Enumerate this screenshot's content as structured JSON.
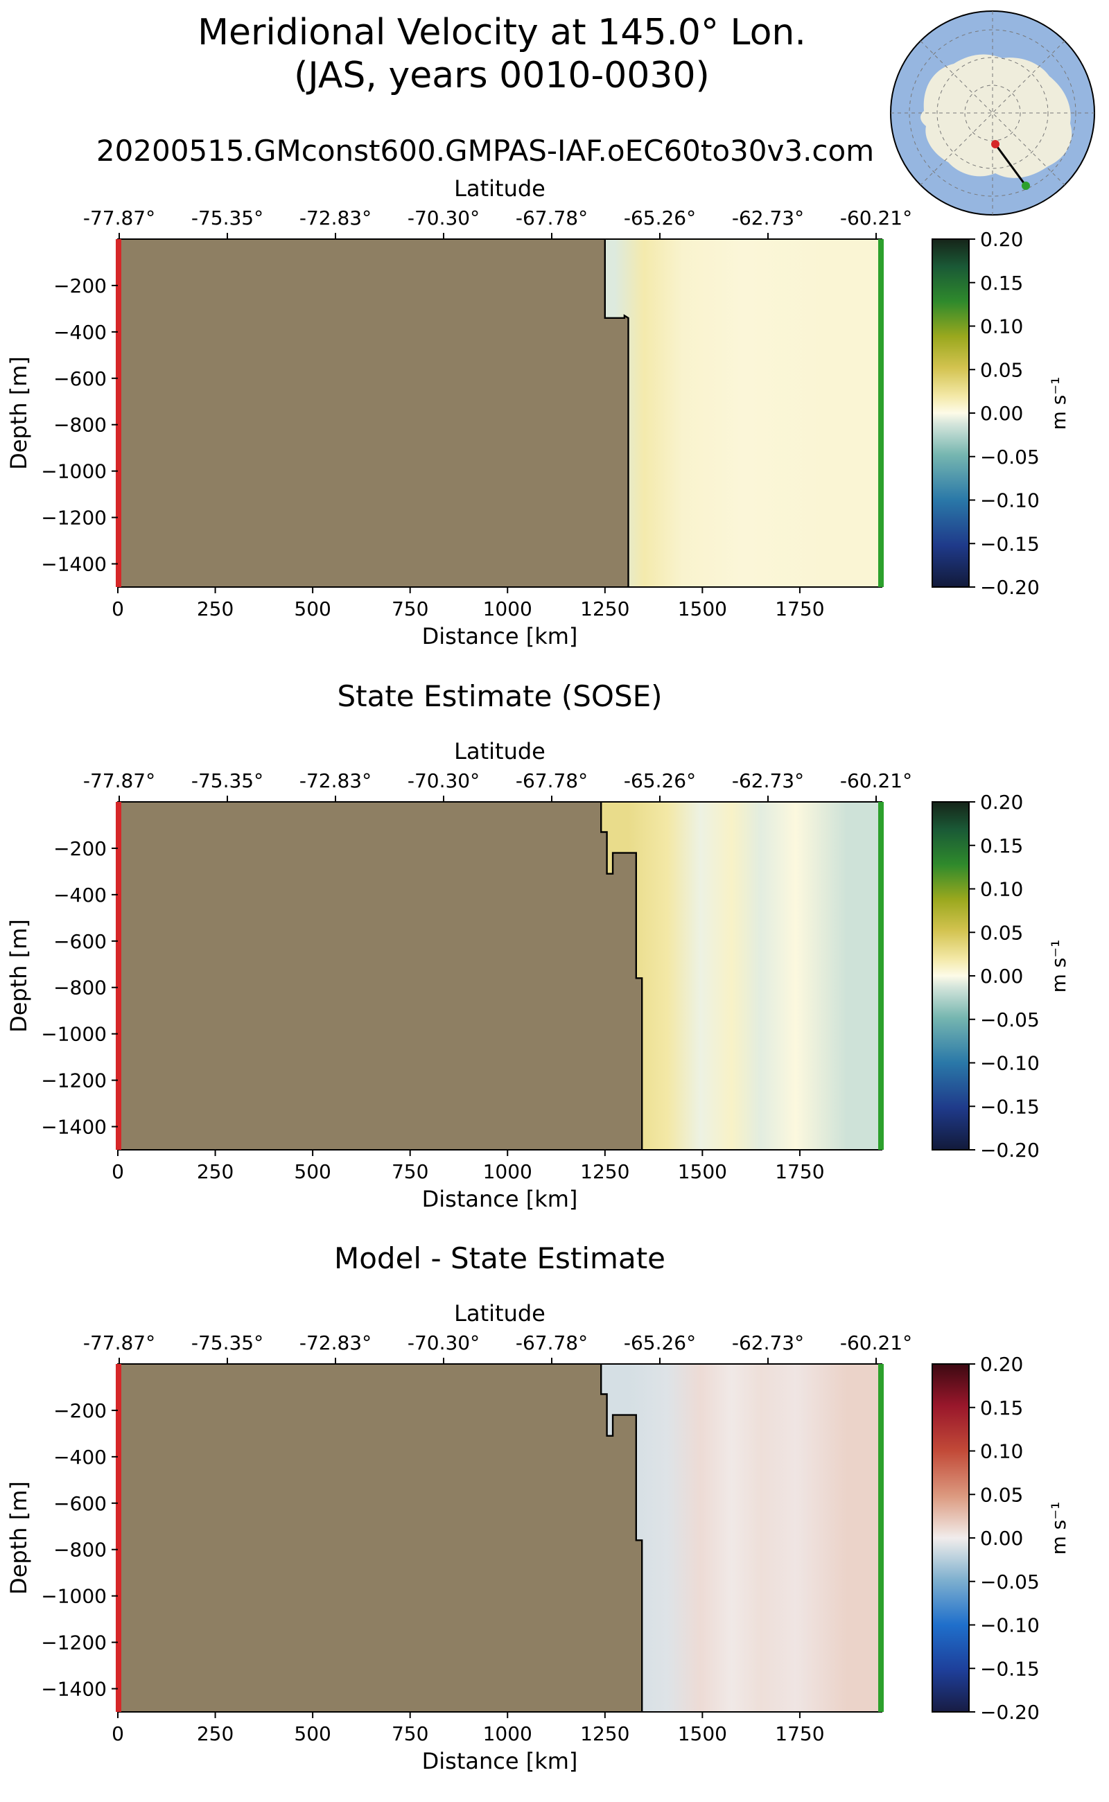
{
  "figure": {
    "title_line1": "Meridional Velocity at 145.0° Lon.",
    "title_line2": "(JAS, years 0010-0030)",
    "run_name": "20200515.GMconst600.GMPAS-IAF.oEC60to30v3.com"
  },
  "inset_map": {
    "projection": "south-polar",
    "land_color": "#efeddc",
    "ocean_color": "#96b6e0",
    "transect_start_color": "#d62728",
    "transect_end_color": "#2ca02c"
  },
  "colors": {
    "land_fill": "#8e7f63",
    "left_edge": "#d62728",
    "right_edge": "#2ca02c"
  },
  "chart_data": [
    {
      "type": "heatmap",
      "title": "",
      "xlabel": "Distance [km]",
      "ylabel": "Depth [m]",
      "top_xlabel": "Latitude",
      "xlim": [
        0,
        1960
      ],
      "ylim": [
        -1500,
        0
      ],
      "x_ticks": [
        0,
        250,
        500,
        750,
        1000,
        1250,
        1500,
        1750
      ],
      "y_ticks": [
        -200,
        -400,
        -600,
        -800,
        -1000,
        -1200,
        -1400
      ],
      "top_ticks": [
        "-77.87°",
        "-75.35°",
        "-72.83°",
        "-70.30°",
        "-67.78°",
        "-65.26°",
        "-62.73°",
        "-60.21°"
      ],
      "colorbar": {
        "label": "m s⁻¹",
        "ticks": [
          "0.20",
          "0.15",
          "0.10",
          "0.05",
          "0.00",
          "−0.05",
          "−0.10",
          "−0.15",
          "−0.20"
        ],
        "colormap": "delta",
        "range": [
          -0.2,
          0.2
        ]
      },
      "bathymetry": [
        [
          1250,
          0
        ],
        [
          1250,
          -340
        ],
        [
          1300,
          -340
        ],
        [
          1300,
          -330
        ],
        [
          1310,
          -340
        ],
        [
          1310,
          -1500
        ]
      ],
      "field_columns": [
        {
          "x0": 1250,
          "x1": 1300,
          "value": -0.01
        },
        {
          "x0": 1300,
          "x1": 1400,
          "value": 0.018
        },
        {
          "x0": 1400,
          "x1": 1500,
          "value": 0.008
        },
        {
          "x0": 1500,
          "x1": 1700,
          "value": 0.005
        },
        {
          "x0": 1700,
          "x1": 1960,
          "value": 0.006
        }
      ]
    },
    {
      "type": "heatmap",
      "title": "State Estimate (SOSE)",
      "xlabel": "Distance [km]",
      "ylabel": "Depth [m]",
      "top_xlabel": "Latitude",
      "xlim": [
        0,
        1960
      ],
      "ylim": [
        -1500,
        0
      ],
      "x_ticks": [
        0,
        250,
        500,
        750,
        1000,
        1250,
        1500,
        1750
      ],
      "y_ticks": [
        -200,
        -400,
        -600,
        -800,
        -1000,
        -1200,
        -1400
      ],
      "top_ticks": [
        "-77.87°",
        "-75.35°",
        "-72.83°",
        "-70.30°",
        "-67.78°",
        "-65.26°",
        "-62.73°",
        "-60.21°"
      ],
      "colorbar": {
        "label": "m s⁻¹",
        "ticks": [
          "0.20",
          "0.15",
          "0.10",
          "0.05",
          "0.00",
          "−0.05",
          "−0.10",
          "−0.15",
          "−0.20"
        ],
        "colormap": "delta",
        "range": [
          -0.2,
          0.2
        ]
      },
      "bathymetry": [
        [
          1240,
          0
        ],
        [
          1240,
          -130
        ],
        [
          1255,
          -130
        ],
        [
          1255,
          -310
        ],
        [
          1270,
          -310
        ],
        [
          1270,
          -220
        ],
        [
          1330,
          -220
        ],
        [
          1330,
          -760
        ],
        [
          1345,
          -760
        ],
        [
          1345,
          -1500
        ]
      ],
      "field_columns": [
        {
          "x0": 1240,
          "x1": 1380,
          "value": 0.03
        },
        {
          "x0": 1380,
          "x1": 1440,
          "value": 0.02
        },
        {
          "x0": 1440,
          "x1": 1550,
          "value": -0.005
        },
        {
          "x0": 1550,
          "x1": 1600,
          "value": 0.01
        },
        {
          "x0": 1600,
          "x1": 1700,
          "value": -0.008
        },
        {
          "x0": 1700,
          "x1": 1780,
          "value": 0.003
        },
        {
          "x0": 1780,
          "x1": 1960,
          "value": -0.015
        }
      ]
    },
    {
      "type": "heatmap",
      "title": "Model - State Estimate",
      "xlabel": "Distance [km]",
      "ylabel": "Depth [m]",
      "top_xlabel": "Latitude",
      "xlim": [
        0,
        1960
      ],
      "ylim": [
        -1500,
        0
      ],
      "x_ticks": [
        0,
        250,
        500,
        750,
        1000,
        1250,
        1500,
        1750
      ],
      "y_ticks": [
        -200,
        -400,
        -600,
        -800,
        -1000,
        -1200,
        -1400
      ],
      "top_ticks": [
        "-77.87°",
        "-75.35°",
        "-72.83°",
        "-70.30°",
        "-67.78°",
        "-65.26°",
        "-62.73°",
        "-60.21°"
      ],
      "colorbar": {
        "label": "m s⁻¹",
        "ticks": [
          "0.20",
          "0.15",
          "0.10",
          "0.05",
          "0.00",
          "−0.05",
          "−0.10",
          "−0.15",
          "−0.20"
        ],
        "colormap": "balance",
        "range": [
          -0.2,
          0.2
        ]
      },
      "bathymetry": [
        [
          1240,
          0
        ],
        [
          1240,
          -130
        ],
        [
          1255,
          -130
        ],
        [
          1255,
          -310
        ],
        [
          1270,
          -310
        ],
        [
          1270,
          -220
        ],
        [
          1330,
          -220
        ],
        [
          1330,
          -760
        ],
        [
          1345,
          -760
        ],
        [
          1345,
          -1500
        ]
      ],
      "field_columns": [
        {
          "x0": 1240,
          "x1": 1380,
          "value": -0.012
        },
        {
          "x0": 1380,
          "x1": 1440,
          "value": -0.008
        },
        {
          "x0": 1440,
          "x1": 1550,
          "value": 0.01
        },
        {
          "x0": 1550,
          "x1": 1600,
          "value": 0.002
        },
        {
          "x0": 1600,
          "x1": 1700,
          "value": 0.008
        },
        {
          "x0": 1700,
          "x1": 1780,
          "value": 0.004
        },
        {
          "x0": 1780,
          "x1": 1960,
          "value": 0.015
        }
      ]
    }
  ]
}
